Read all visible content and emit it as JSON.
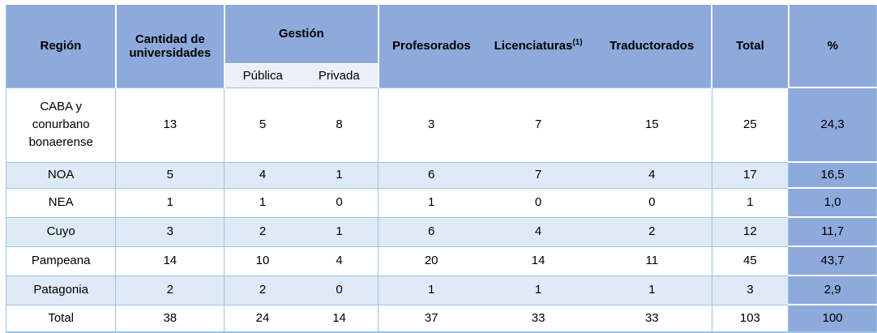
{
  "colors": {
    "header_bg": "#8EA9DB",
    "subheader_bg": "#E9F0F8",
    "zebra_bg": "#DEEAF6",
    "white_bg": "#FFFFFF",
    "border": "#9CC3E5",
    "text": "#000000"
  },
  "chart_data": {
    "type": "table",
    "title": "",
    "column_groups": [
      {
        "label": "Gestión",
        "children": [
          "Pública",
          "Privada"
        ]
      }
    ],
    "columns": [
      "Región",
      "Cantidad de universidades",
      "Pública",
      "Privada",
      "Profesorados",
      "Licenciaturas",
      "Traductorados",
      "Total",
      "%"
    ],
    "footnote_marker": "(1)",
    "footnote_column": "Licenciaturas",
    "rows": [
      [
        "CABA y conurbano bonaerense",
        "13",
        "5",
        "8",
        "3",
        "7",
        "15",
        "25",
        "24,3"
      ],
      [
        "NOA",
        "5",
        "4",
        "1",
        "6",
        "7",
        "4",
        "17",
        "16,5"
      ],
      [
        "NEA",
        "1",
        "1",
        "0",
        "1",
        "0",
        "0",
        "1",
        "1,0"
      ],
      [
        "Cuyo",
        "3",
        "2",
        "1",
        "6",
        "4",
        "2",
        "12",
        "11,7"
      ],
      [
        "Pampeana",
        "14",
        "10",
        "4",
        "20",
        "14",
        "11",
        "45",
        "43,7"
      ],
      [
        "Patagonia",
        "2",
        "2",
        "0",
        "1",
        "1",
        "1",
        "3",
        "2,9"
      ],
      [
        "Total",
        "38",
        "24",
        "14",
        "37",
        "33",
        "33",
        "103",
        "100"
      ]
    ],
    "zebra_rows": [
      1,
      3,
      5
    ],
    "layout": {
      "percent_column_highlighted": true,
      "header_rows": 2,
      "grid": "partial-vertical-borders"
    }
  }
}
